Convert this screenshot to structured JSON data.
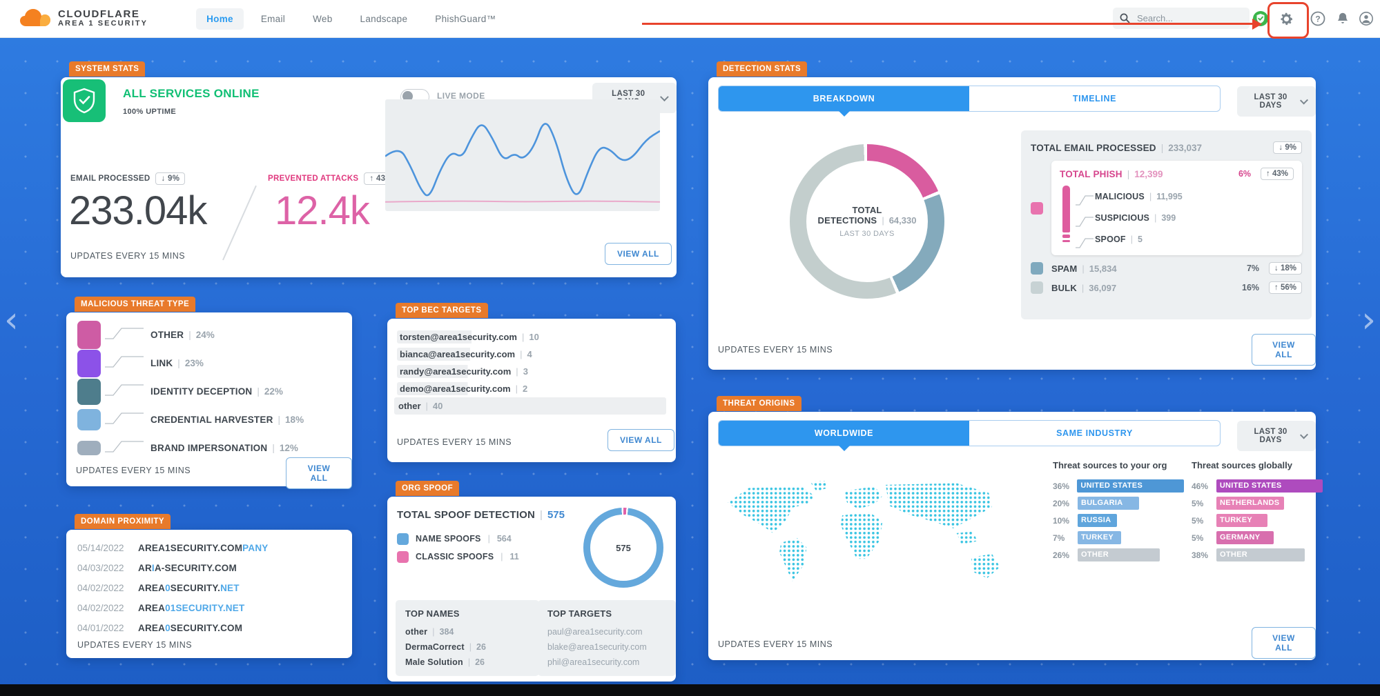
{
  "common": {
    "view_all": "VIEW ALL",
    "updates": "UPDATES EVERY 15 MINS",
    "range": "LAST 30 DAYS"
  },
  "nav": {
    "brand_line1": "CLOUDFLARE",
    "brand_line2": "AREA 1 SECURITY",
    "items": [
      {
        "label": "Home",
        "active": true
      },
      {
        "label": "Email",
        "active": false
      },
      {
        "label": "Web",
        "active": false
      },
      {
        "label": "Landscape",
        "active": false
      },
      {
        "label": "PhishGuard™",
        "active": false
      }
    ],
    "search_placeholder": "Search..."
  },
  "system_stats": {
    "badge": "SYSTEM STATS",
    "status": "ALL SERVICES ONLINE",
    "uptime": "100% UPTIME",
    "live_mode_label": "LIVE MODE",
    "email_processed": {
      "label": "EMAIL PROCESSED",
      "delta": "↓ 9%",
      "value": "233.04k"
    },
    "prevented_attacks": {
      "label": "PREVENTED ATTACKS",
      "delta": "↑ 43%",
      "value": "12.4k"
    },
    "chart_data": {
      "type": "line",
      "series": [
        {
          "name": "email-processed",
          "color": "#4d94dc",
          "points": [
            [
              0,
              28
            ],
            [
              5,
              22
            ],
            [
              9,
              33
            ],
            [
              13,
              48
            ],
            [
              16,
              53
            ],
            [
              20,
              36
            ],
            [
              24,
              25
            ],
            [
              28,
              29
            ],
            [
              31,
              18
            ],
            [
              35,
              7
            ],
            [
              39,
              17
            ],
            [
              43,
              31
            ],
            [
              47,
              26
            ],
            [
              50,
              30
            ],
            [
              54,
              23
            ],
            [
              58,
              5
            ],
            [
              62,
              18
            ],
            [
              66,
              42
            ],
            [
              70,
              54
            ],
            [
              74,
              36
            ],
            [
              78,
              22
            ],
            [
              82,
              24
            ],
            [
              86,
              31
            ],
            [
              90,
              29
            ],
            [
              95,
              18
            ],
            [
              100,
              13
            ]
          ]
        },
        {
          "name": "prevented-attacks",
          "color": "#eaa9ca",
          "points": [
            [
              0,
              55
            ],
            [
              25,
              54.3
            ],
            [
              50,
              55
            ],
            [
              75,
              54.4
            ],
            [
              100,
              55
            ]
          ]
        }
      ],
      "axes": "none"
    }
  },
  "threat_type": {
    "badge": "MALICIOUS THREAT TYPE",
    "chart_data": {
      "type": "bar",
      "categories": [
        "OTHER",
        "LINK",
        "IDENTITY DECEPTION",
        "CREDENTIAL HARVESTER",
        "BRAND IMPERSONATION"
      ],
      "values": [
        24,
        23,
        22,
        18,
        12
      ],
      "unit": "%",
      "colors": [
        "#ce5ca4",
        "#8c52e8",
        "#4e7d8c",
        "#7fb3de",
        "#9faebd"
      ]
    }
  },
  "domain_proximity": {
    "badge": "DOMAIN PROXIMITY",
    "rows": [
      {
        "date": "05/14/2022",
        "parts": [
          {
            "t": "AREA1SECURITY.COM"
          },
          {
            "t": "PANY",
            "hl": true
          }
        ]
      },
      {
        "date": "04/03/2022",
        "parts": [
          {
            "t": "AR"
          },
          {
            "t": "I",
            "hl": true
          },
          {
            "t": "A-SECURITY.COM"
          }
        ]
      },
      {
        "date": "04/02/2022",
        "parts": [
          {
            "t": "AREA"
          },
          {
            "t": "0",
            "hl": true
          },
          {
            "t": "SECURITY."
          },
          {
            "t": "NET",
            "hl": true
          }
        ]
      },
      {
        "date": "04/02/2022",
        "parts": [
          {
            "t": "AREA"
          },
          {
            "t": "01SECURITY.NET",
            "hl": true
          }
        ]
      },
      {
        "date": "04/01/2022",
        "parts": [
          {
            "t": "AREA"
          },
          {
            "t": "0",
            "hl": true
          },
          {
            "t": "SECURITY.COM"
          }
        ]
      }
    ]
  },
  "bec_targets": {
    "badge": "TOP BEC TARGETS",
    "rows": [
      {
        "name": "torsten@area1security.com",
        "count": "10",
        "full": false
      },
      {
        "name": "bianca@area1security.com",
        "count": "4",
        "full": false
      },
      {
        "name": "randy@area1security.com",
        "count": "3",
        "full": false
      },
      {
        "name": "demo@area1security.com",
        "count": "2",
        "full": false
      },
      {
        "name": "other",
        "count": "40",
        "full": true
      }
    ]
  },
  "org_spoof": {
    "badge": "ORG SPOOF",
    "title": "TOTAL SPOOF DETECTION",
    "total": "575",
    "donut_center": "575",
    "chart_data": {
      "type": "pie",
      "segments": [
        {
          "label": "CLASSIC SPOOFS",
          "value": 11,
          "color": "#e060a8"
        },
        {
          "label": "NAME SPOOFS",
          "value": 564,
          "color": "#64a8dc"
        }
      ]
    },
    "legend": [
      {
        "label": "NAME SPOOFS",
        "value": "564",
        "color": "#64a8dc"
      },
      {
        "label": "CLASSIC SPOOFS",
        "value": "11",
        "color": "#e873ae"
      }
    ],
    "top_names": {
      "title": "TOP NAMES",
      "rows": [
        {
          "name": "other",
          "count": "384"
        },
        {
          "name": "DermaCorrect",
          "count": "26"
        },
        {
          "name": "Male Solution",
          "count": "26"
        }
      ]
    },
    "top_targets": {
      "title": "TOP TARGETS",
      "rows": [
        "paul@area1security.com",
        "blake@area1security.com",
        "phil@area1security.com"
      ]
    }
  },
  "detection_stats": {
    "badge": "DETECTION STATS",
    "tabs": [
      {
        "label": "BREAKDOWN",
        "active": true
      },
      {
        "label": "TIMELINE",
        "active": false
      }
    ],
    "donut_center": {
      "label": "TOTAL DETECTIONS",
      "value": "64,330",
      "sub": "LAST 30 DAYS"
    },
    "chart_data": {
      "type": "pie",
      "total": 64330,
      "segments": [
        {
          "label": "TOTAL PHISH",
          "value": 12399,
          "color": "#d95c9f"
        },
        {
          "label": "SPAM",
          "value": 15834,
          "color": "#84aabc"
        },
        {
          "label": "BULK",
          "value": 36097,
          "color": "#c3cecd"
        }
      ]
    },
    "total_processed": {
      "label": "TOTAL EMAIL PROCESSED",
      "value": "233,037",
      "delta": "↓ 9%"
    },
    "phish": {
      "label": "TOTAL PHISH",
      "value": "12,399",
      "pct": "6%",
      "delta": "↑ 43%",
      "color": "#e873ae",
      "children": [
        {
          "label": "MALICIOUS",
          "value": "11,995"
        },
        {
          "label": "SUSPICIOUS",
          "value": "399"
        },
        {
          "label": "SPOOF",
          "value": "5"
        }
      ]
    },
    "rows": [
      {
        "label": "SPAM",
        "value": "15,834",
        "pct": "7%",
        "delta": "↓ 18%",
        "color": "#7fa9be"
      },
      {
        "label": "BULK",
        "value": "36,097",
        "pct": "16%",
        "delta": "↑ 56%",
        "color": "#c7d2d4"
      }
    ]
  },
  "threat_origins": {
    "badge": "THREAT ORIGINS",
    "tabs": [
      {
        "label": "WORLDWIDE",
        "active": true
      },
      {
        "label": "SAME INDUSTRY",
        "active": false
      }
    ],
    "org_column": {
      "title": "Threat sources to your org",
      "chart_data": {
        "type": "bar",
        "unit": "%",
        "rows": [
          {
            "pct": "36%",
            "label": "UNITED STATES",
            "w": 1.0,
            "color": "#4e97d6"
          },
          {
            "pct": "20%",
            "label": "BULGARIA",
            "w": 0.55,
            "color": "#86b7e4"
          },
          {
            "pct": "10%",
            "label": "RUSSIA",
            "w": 0.34,
            "color": "#5fa5dc"
          },
          {
            "pct": "7%",
            "label": "TURKEY",
            "w": 0.38,
            "color": "#86b7e4"
          },
          {
            "pct": "26%",
            "label": "OTHER",
            "w": 0.75,
            "color": "#c4cbd1"
          }
        ]
      }
    },
    "global_column": {
      "title": "Threat sources globally",
      "chart_data": {
        "type": "bar",
        "unit": "%",
        "rows": [
          {
            "pct": "46%",
            "label": "UNITED STATES",
            "w": 1.0,
            "color": "#ae4bbe"
          },
          {
            "pct": "5%",
            "label": "NETHERLANDS",
            "w": 0.62,
            "color": "#e781b6"
          },
          {
            "pct": "5%",
            "label": "TURKEY",
            "w": 0.46,
            "color": "#e781b6"
          },
          {
            "pct": "5%",
            "label": "GERMANY",
            "w": 0.52,
            "color": "#d86fae"
          },
          {
            "pct": "38%",
            "label": "OTHER",
            "w": 0.82,
            "color": "#c4cbd1"
          }
        ]
      }
    }
  }
}
